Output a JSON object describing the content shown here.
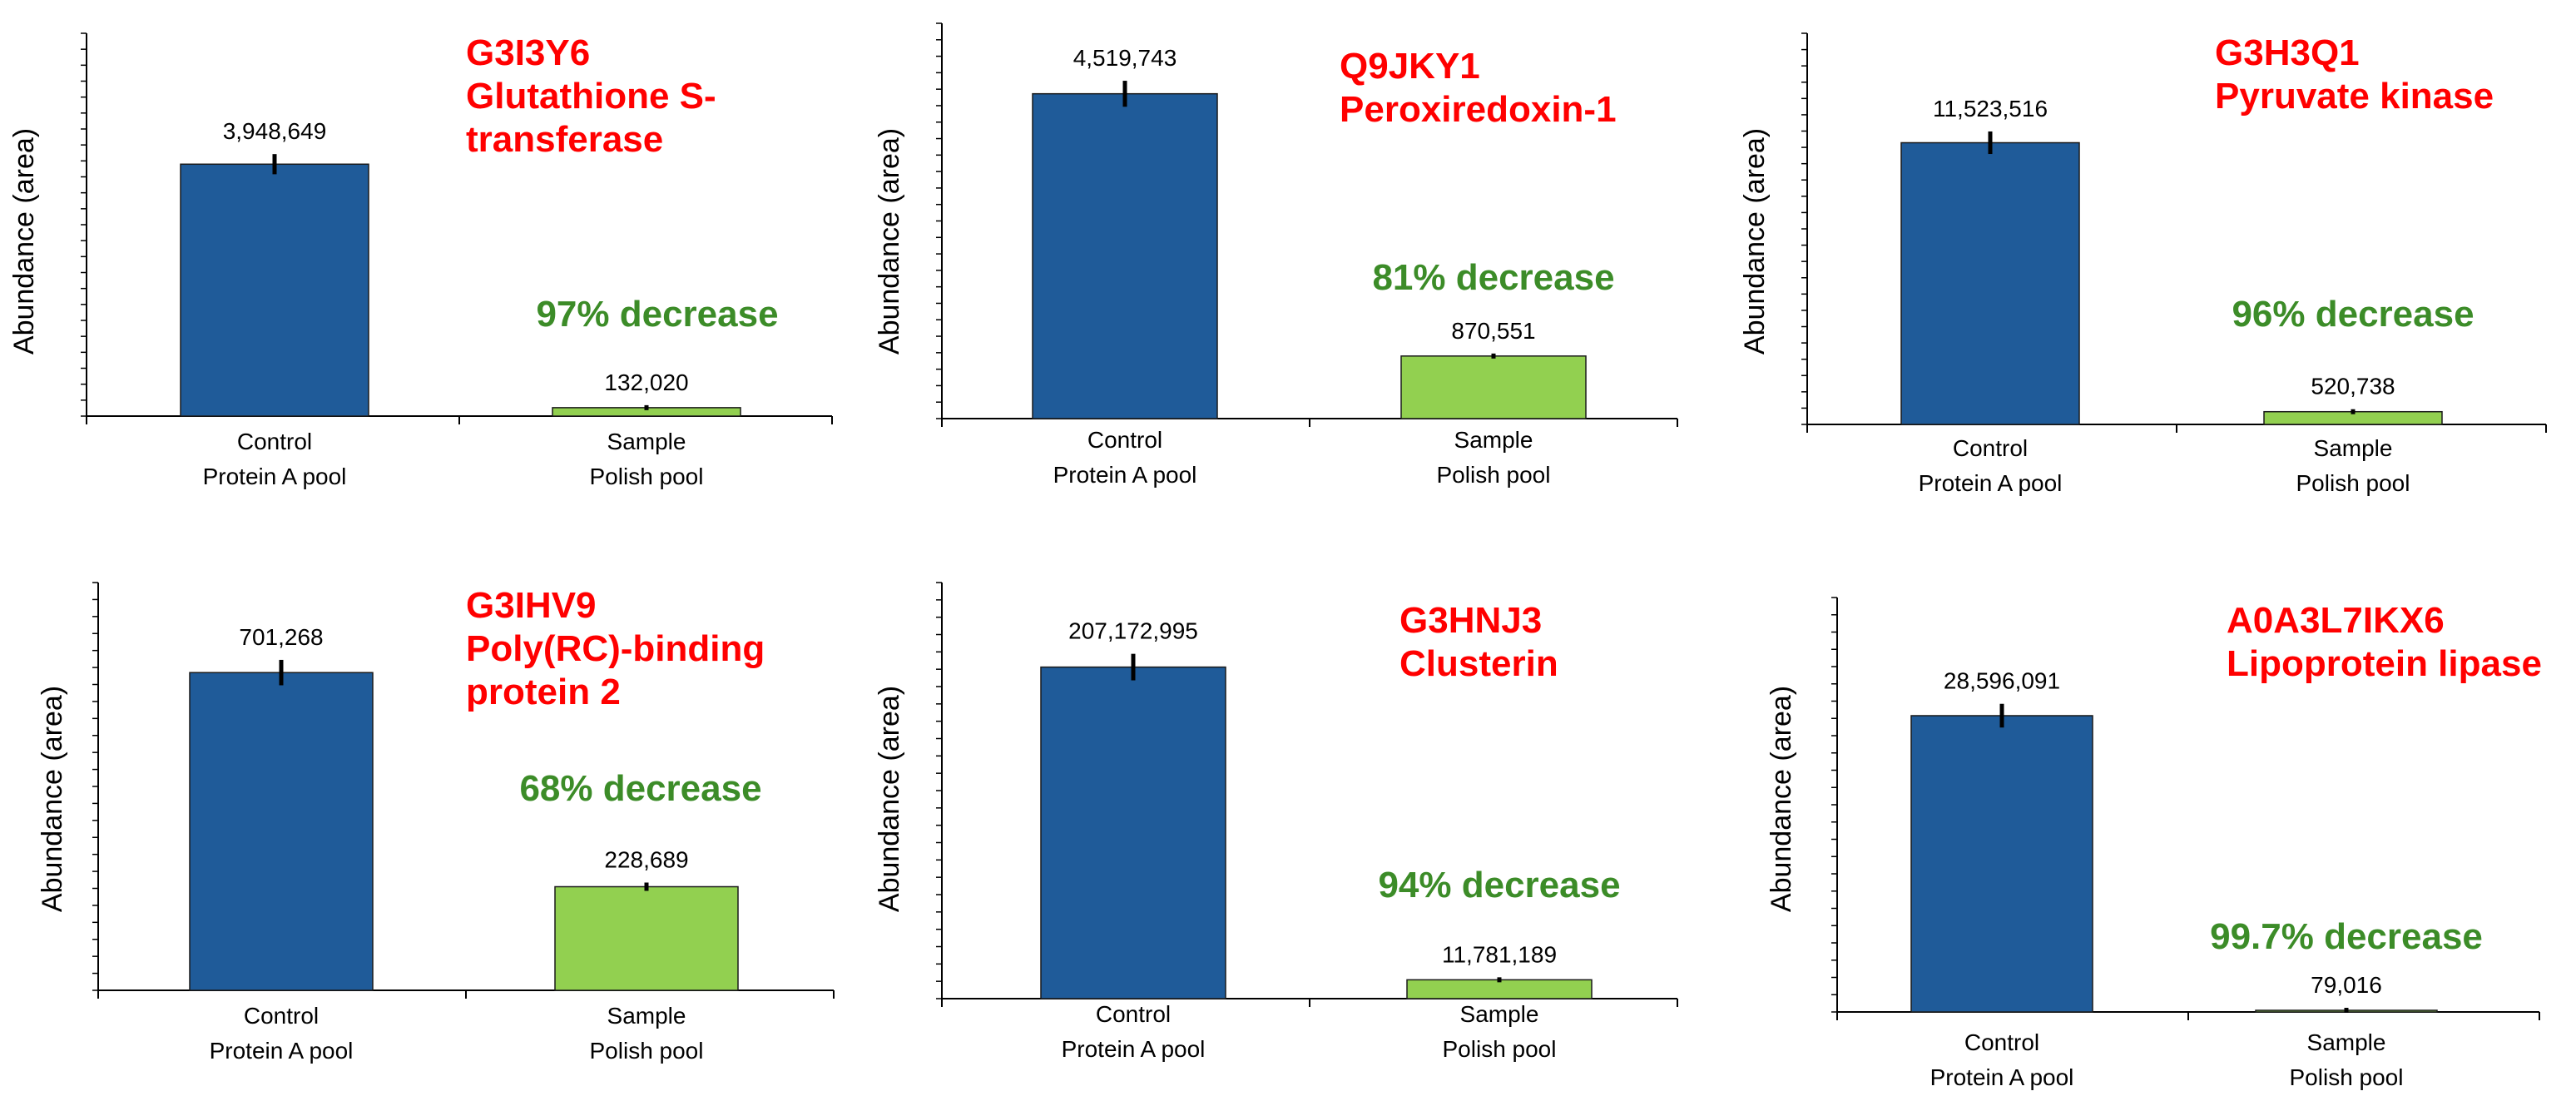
{
  "colors": {
    "control_bar": "#1F5B99",
    "sample_bar": "#92D050",
    "title": "#FF0000",
    "decrease": "#3C8C28",
    "axis": "#000000"
  },
  "chart_data": [
    {
      "type": "bar",
      "protein_id": "G3I3Y6",
      "protein_name": [
        "Glutathione S-",
        "transferase"
      ],
      "ylabel": "Abundance (area)",
      "categories": [
        [
          "Control",
          "Protein A pool"
        ],
        [
          "Sample",
          "Polish pool"
        ]
      ],
      "values": [
        3948649,
        132020
      ],
      "value_labels": [
        "3,948,649",
        "132,020"
      ],
      "decrease_label": "97% decrease",
      "ylim": [
        0,
        6000000
      ]
    },
    {
      "type": "bar",
      "protein_id": "Q9JKY1",
      "protein_name": [
        "Peroxiredoxin-1"
      ],
      "ylabel": "Abundance (area)",
      "categories": [
        [
          "Control",
          "Protein A pool"
        ],
        [
          "Sample",
          "Polish pool"
        ]
      ],
      "values": [
        4519743,
        870551
      ],
      "value_labels": [
        "4,519,743",
        "870,551"
      ],
      "decrease_label": "81% decrease",
      "ylim": [
        0,
        5500000
      ]
    },
    {
      "type": "bar",
      "protein_id": "G3H3Q1",
      "protein_name": [
        "Pyruvate kinase"
      ],
      "ylabel": "Abundance (area)",
      "categories": [
        [
          "Control",
          "Protein A pool"
        ],
        [
          "Sample",
          "Polish pool"
        ]
      ],
      "values": [
        11523516,
        520738
      ],
      "value_labels": [
        "11,523,516",
        "520,738"
      ],
      "decrease_label": "96% decrease",
      "ylim": [
        0,
        16000000
      ]
    },
    {
      "type": "bar",
      "protein_id": "G3IHV9",
      "protein_name": [
        "Poly(RC)-binding",
        "protein 2"
      ],
      "ylabel": "Abundance (area)",
      "categories": [
        [
          "Control",
          "Protein A pool"
        ],
        [
          "Sample",
          "Polish pool"
        ]
      ],
      "values": [
        701268,
        228689
      ],
      "value_labels": [
        "701,268",
        "228,689"
      ],
      "decrease_label": "68% decrease",
      "ylim": [
        0,
        900000
      ]
    },
    {
      "type": "bar",
      "protein_id": "G3HNJ3",
      "protein_name": [
        "Clusterin"
      ],
      "ylabel": "Abundance (area)",
      "categories": [
        [
          "Control",
          "Protein A pool"
        ],
        [
          "Sample",
          "Polish pool"
        ]
      ],
      "values": [
        207172995,
        11781189
      ],
      "value_labels": [
        "207,172,995",
        "11,781,189"
      ],
      "decrease_label": "94% decrease",
      "ylim": [
        0,
        260000000
      ]
    },
    {
      "type": "bar",
      "protein_id": "A0A3L7IKX6",
      "protein_name": [
        "Lipoprotein lipase"
      ],
      "ylabel": "Abundance (area)",
      "categories": [
        [
          "Control",
          "Protein A pool"
        ],
        [
          "Sample",
          "Polish pool"
        ]
      ],
      "values": [
        28596091,
        79016
      ],
      "value_labels": [
        "28,596,091",
        "79,016"
      ],
      "decrease_label": "99.7% decrease",
      "ylim": [
        0,
        40000000
      ]
    }
  ]
}
